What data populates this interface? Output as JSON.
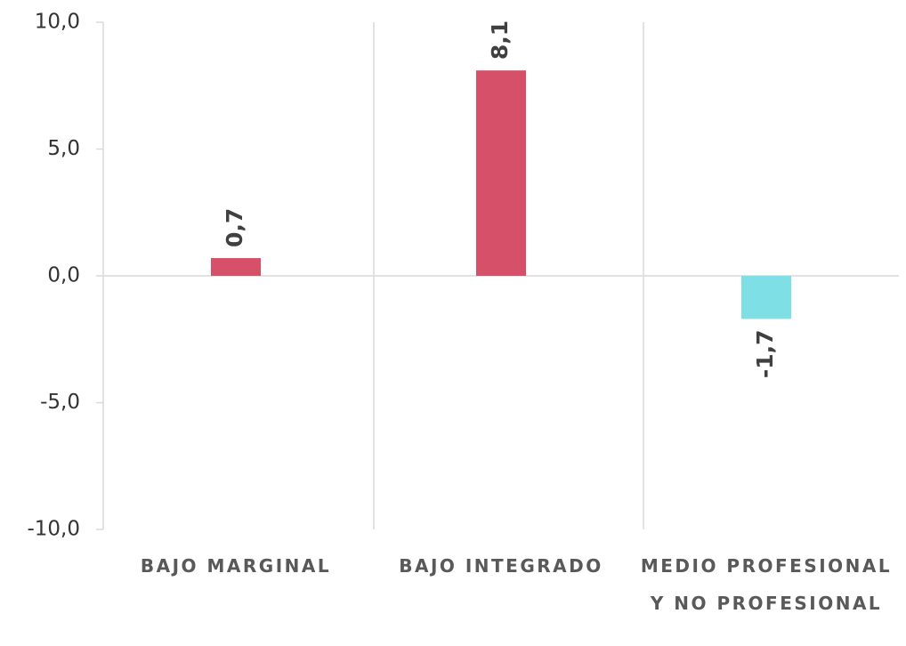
{
  "chart_data": {
    "type": "bar",
    "categories": [
      "BAJO MARGINAL",
      "BAJO INTEGRADO",
      "MEDIO PROFESIONAL Y NO PROFESIONAL"
    ],
    "values": [
      0.7,
      8.1,
      -1.7
    ],
    "value_labels": [
      "0,7",
      "8,1",
      "-1,7"
    ],
    "colors": [
      "#d6506a",
      "#d6506a",
      "#7ee0e4"
    ],
    "ylim": [
      -10,
      10
    ],
    "yticks": [
      {
        "value": -10,
        "label": "-10,0"
      },
      {
        "value": -5,
        "label": "-5,0"
      },
      {
        "value": 0,
        "label": "0,0"
      },
      {
        "value": 5,
        "label": "5,0"
      },
      {
        "value": 10,
        "label": "10,0"
      }
    ]
  }
}
